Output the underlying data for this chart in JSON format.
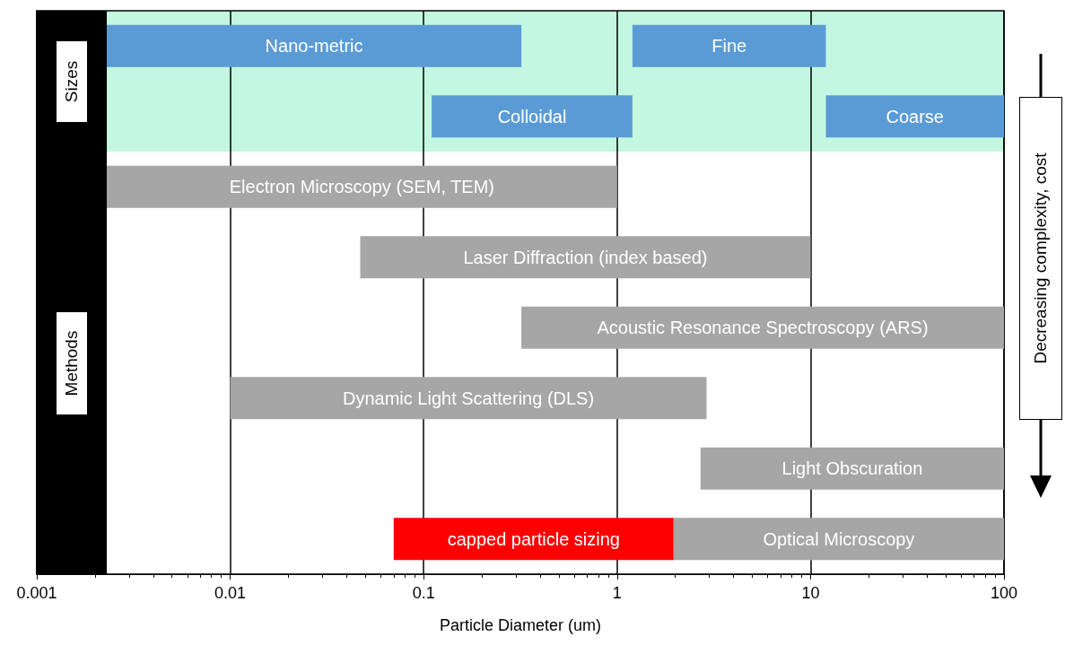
{
  "chart_data": {
    "type": "bar",
    "orientation": "horizontal",
    "log": "x",
    "xlabel": "Particle Diameter (um)",
    "categories": [
      null,
      null,
      null,
      null,
      null,
      null,
      null,
      null
    ],
    "xlim": [
      0.001,
      100
    ],
    "xticks": [
      0.001,
      0.01,
      0.1,
      1,
      10,
      100
    ],
    "grid": "x",
    "tick_labels": "x",
    "series": [
      {
        "name": "Nano-metric",
        "color": "#5b9bd5",
        "base": [
          0.0023,
          null,
          null,
          null,
          null,
          null,
          null,
          null
        ],
        "values": [
          0.3177,
          null,
          null,
          null,
          null,
          null,
          null,
          null
        ]
      },
      {
        "name": "Fine",
        "color": "#5b9bd5",
        "base": [
          1.2,
          null,
          null,
          null,
          null,
          null,
          null,
          null
        ],
        "values": [
          10.8,
          null,
          null,
          null,
          null,
          null,
          null,
          null
        ]
      },
      {
        "name": "Colloidal",
        "color": "#5b9bd5",
        "base": [
          null,
          0.11,
          null,
          null,
          null,
          null,
          null,
          null
        ],
        "values": [
          null,
          1.09,
          null,
          null,
          null,
          null,
          null,
          null
        ]
      },
      {
        "name": "Coarse",
        "color": "#5b9bd5",
        "base": [
          null,
          12,
          null,
          null,
          null,
          null,
          null,
          null
        ],
        "values": [
          null,
          88,
          null,
          null,
          null,
          null,
          null,
          null
        ]
      },
      {
        "name": "Electron Microscopy (SEM, TEM)",
        "color": "#a6a6a6",
        "base": [
          null,
          null,
          0.0023,
          null,
          null,
          null,
          null,
          null
        ],
        "values": [
          null,
          null,
          0.9977,
          null,
          null,
          null,
          null,
          null
        ]
      },
      {
        "name": "Laser Diffraction (index based)",
        "color": "#a6a6a6",
        "base": [
          null,
          null,
          null,
          0.047,
          null,
          null,
          null,
          null
        ],
        "values": [
          null,
          null,
          null,
          9.953,
          null,
          null,
          null,
          null
        ]
      },
      {
        "name": "Acoustic Resonance Spectroscopy (ARS)",
        "color": "#a6a6a6",
        "base": [
          null,
          null,
          null,
          null,
          0.32,
          null,
          null,
          null
        ],
        "values": [
          null,
          null,
          null,
          null,
          99.68,
          null,
          null,
          null
        ]
      },
      {
        "name": "Dynamic Light Scattering (DLS)",
        "color": "#a6a6a6",
        "base": [
          null,
          null,
          null,
          null,
          null,
          0.01,
          null,
          null
        ],
        "values": [
          null,
          null,
          null,
          null,
          null,
          2.89,
          null,
          null
        ]
      },
      {
        "name": "Light Obscuration",
        "color": "#a6a6a6",
        "base": [
          null,
          null,
          null,
          null,
          null,
          null,
          2.7,
          null
        ],
        "values": [
          null,
          null,
          null,
          null,
          null,
          null,
          97.3,
          null
        ]
      },
      {
        "name": "capped particle sizing",
        "color": "#ff0000",
        "base": [
          null,
          null,
          null,
          null,
          null,
          null,
          null,
          0.07
        ],
        "values": [
          null,
          null,
          null,
          null,
          null,
          null,
          null,
          1.89
        ]
      },
      {
        "name": "Optical Microscopy",
        "color": "#a6a6a6",
        "base": [
          null,
          null,
          null,
          null,
          null,
          null,
          null,
          1.96
        ],
        "values": [
          null,
          null,
          null,
          null,
          null,
          null,
          null,
          98.04
        ]
      }
    ],
    "annotations": [
      "Sizes",
      "Methods",
      "Decreasing complexity, cost"
    ]
  }
}
